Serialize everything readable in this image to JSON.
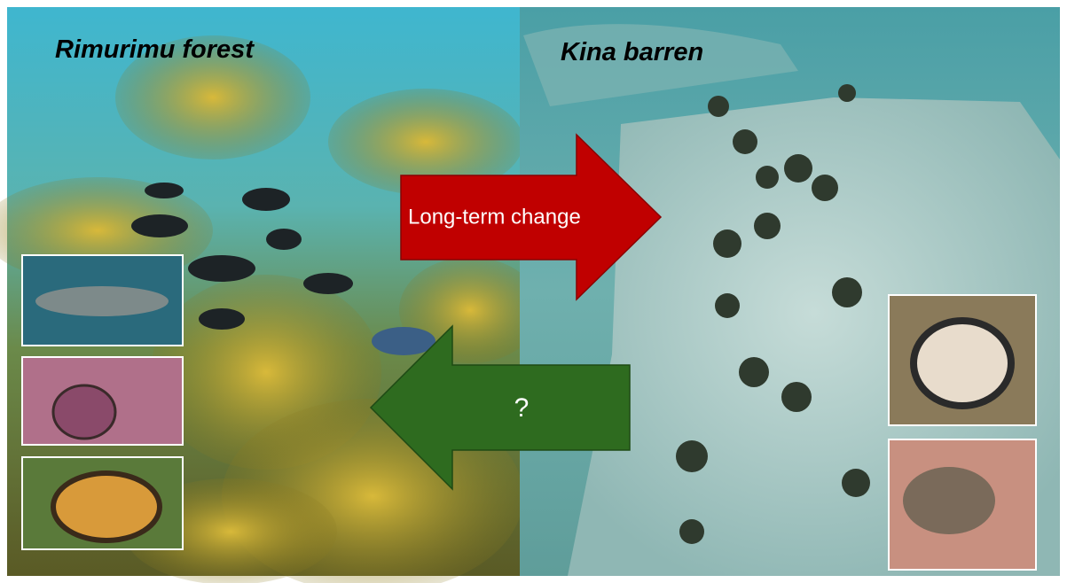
{
  "left_panel": {
    "title": "Rimurimu forest"
  },
  "right_panel": {
    "title": "Kina barren"
  },
  "arrows": [
    {
      "label": "Long-term change"
    },
    {
      "label": "?"
    }
  ]
}
